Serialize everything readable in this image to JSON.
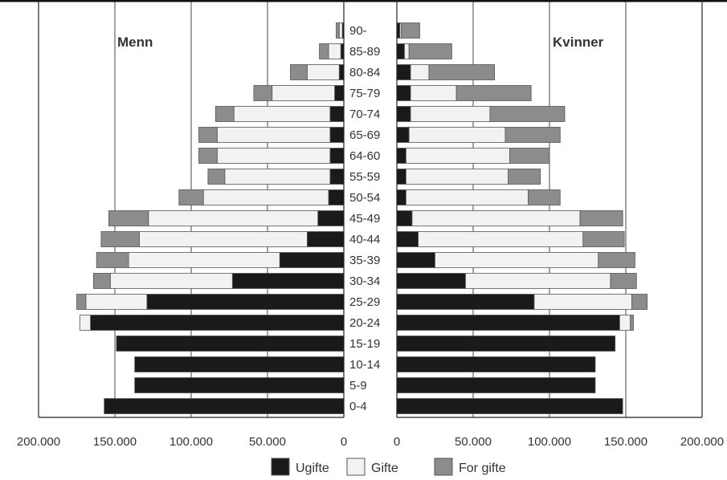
{
  "chart_data": {
    "type": "bar",
    "subtype": "population-pyramid-stacked",
    "grid": true,
    "categories": [
      "0-4",
      "5-9",
      "10-14",
      "15-19",
      "20-24",
      "25-29",
      "30-34",
      "35-39",
      "40-44",
      "45-49",
      "50-54",
      "55-59",
      "64-60",
      "65-69",
      "70-74",
      "75-79",
      "80-84",
      "85-89",
      "90-"
    ],
    "panels": {
      "left": {
        "title": "Menn",
        "xlim": [
          200000,
          0
        ]
      },
      "right": {
        "title": "Kvinner",
        "xlim": [
          0,
          200000
        ]
      }
    },
    "x_ticks_left": [
      "200.000",
      "150.000",
      "100.000",
      "50.000",
      "0"
    ],
    "x_tick_values_left": [
      200000,
      150000,
      100000,
      50000,
      0
    ],
    "x_ticks_right": [
      "0",
      "50.000",
      "100.000",
      "150.000",
      "200.000"
    ],
    "x_tick_values_right": [
      0,
      50000,
      100000,
      150000,
      200000
    ],
    "series": [
      {
        "name": "Ugifte",
        "color": "#1a1a1a",
        "men": [
          157000,
          137000,
          137000,
          149000,
          166000,
          129000,
          73000,
          42000,
          24000,
          17000,
          10000,
          9000,
          9000,
          9000,
          9000,
          6000,
          3000,
          2000,
          1000
        ],
        "women": [
          148000,
          130000,
          130000,
          143000,
          146000,
          90000,
          45000,
          25000,
          14000,
          10000,
          6000,
          6000,
          6000,
          8000,
          9000,
          9000,
          9000,
          5000,
          2000
        ]
      },
      {
        "name": "Gifte",
        "color": "#f2f2f2",
        "men": [
          0,
          0,
          0,
          0,
          7000,
          40000,
          80000,
          99000,
          110000,
          111000,
          82000,
          69000,
          74000,
          74000,
          63000,
          41000,
          21000,
          8000,
          2000
        ],
        "women": [
          0,
          0,
          0,
          0,
          7000,
          64000,
          95000,
          107000,
          108000,
          110000,
          80000,
          67000,
          68000,
          63000,
          52000,
          30000,
          12000,
          3000,
          1000
        ]
      },
      {
        "name": "For gifte",
        "color": "#8c8c8c",
        "men": [
          0,
          0,
          0,
          0,
          0,
          6000,
          11000,
          21000,
          25000,
          26000,
          16000,
          11000,
          12000,
          12000,
          12000,
          12000,
          11000,
          6000,
          2000
        ],
        "women": [
          0,
          0,
          0,
          0,
          2000,
          10000,
          17000,
          24000,
          27000,
          28000,
          21000,
          21000,
          26000,
          36000,
          49000,
          49000,
          43000,
          28000,
          12000
        ]
      }
    ]
  }
}
